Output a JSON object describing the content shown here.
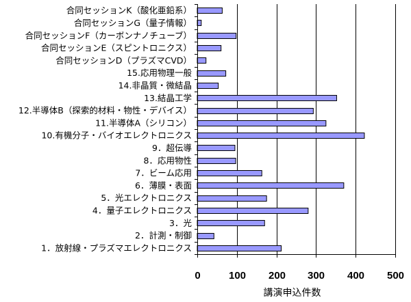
{
  "chart_data": {
    "type": "bar",
    "orientation": "horizontal",
    "categories": [
      "合同セッションK（酸化亜鉛系）",
      "合同セッションG（量子情報）",
      "合同セッションF（カーボンナノチューブ）",
      "合同セッションE（スピントロニクス）",
      "合同セッションD（プラズマCVD）",
      "15.応用物理一般",
      "14.非晶質・微結晶",
      "13.結晶工学",
      "12.半導体B（探索的材料・物性・デバイス）",
      "11.半導体A（シリコン）",
      "10.有機分子・バイオエレクトロニクス",
      "9．超伝導",
      "8．応用物性",
      "7．ビーム応用",
      "6．薄膜・表面",
      "5．光エレクトロニクス",
      "4．量子エレクトロニクス",
      "3．光",
      "2．計測・制御",
      "1．放射線・プラズマエレクトロニクス"
    ],
    "values": [
      63,
      10,
      98,
      60,
      22,
      72,
      53,
      352,
      293,
      325,
      422,
      95,
      97,
      163,
      370,
      175,
      280,
      170,
      42,
      212
    ],
    "xlabel": "講演申込件数",
    "ylabel": "",
    "title": "",
    "xlim": [
      0,
      500
    ],
    "xticks": [
      "0",
      "100",
      "200",
      "300",
      "400",
      "500"
    ],
    "grid": true,
    "bar_color": "#9999ff",
    "legend": "none"
  }
}
